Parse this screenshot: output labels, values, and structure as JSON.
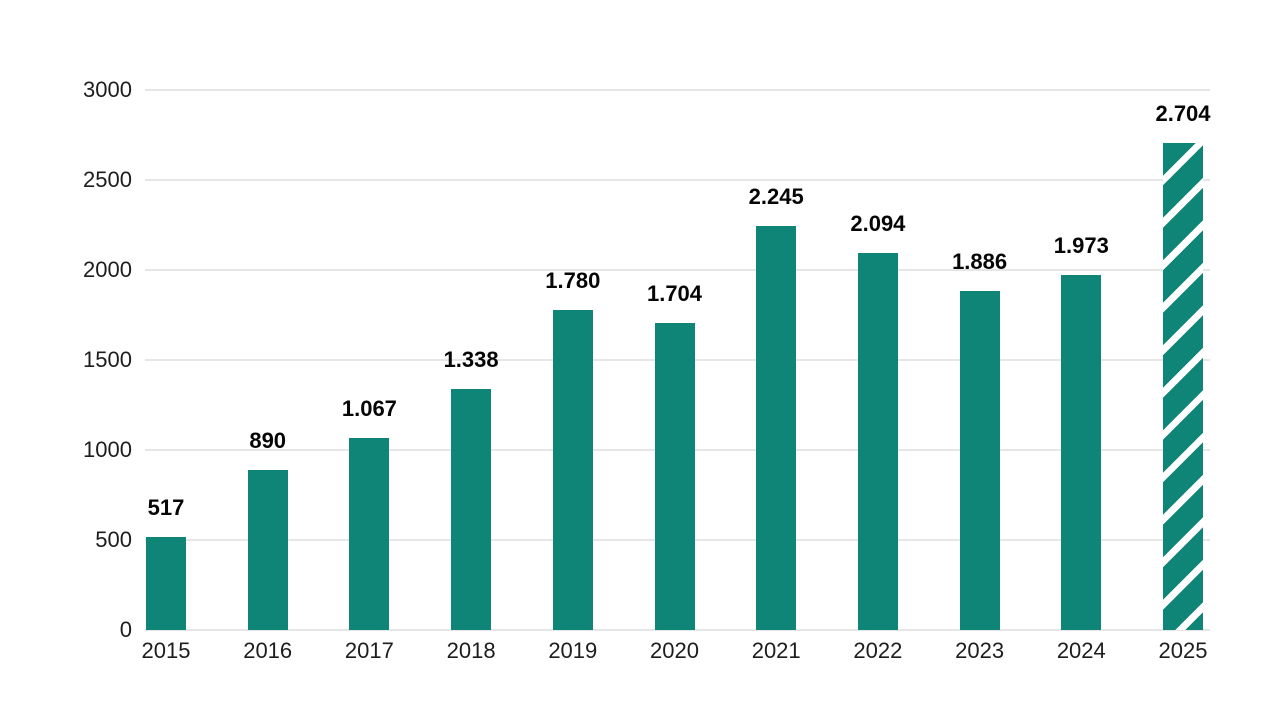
{
  "chart_data": {
    "type": "bar",
    "title": "",
    "xlabel": "",
    "ylabel": "",
    "categories": [
      "2015",
      "2016",
      "2017",
      "2018",
      "2019",
      "2020",
      "2021",
      "2022",
      "2023",
      "2024",
      "2025"
    ],
    "values": [
      517,
      890,
      1067,
      1338,
      1780,
      1704,
      2245,
      2094,
      1886,
      1973,
      2704
    ],
    "value_labels": [
      "517",
      "890",
      "1.067",
      "1.338",
      "1.780",
      "1.704",
      "2.245",
      "2.094",
      "1.886",
      "1.973",
      "2.704"
    ],
    "ylim": [
      0,
      3000
    ],
    "yticks": [
      0,
      500,
      1000,
      1500,
      2000,
      2500,
      3000
    ],
    "ytick_labels": [
      "0",
      "500",
      "1000",
      "1500",
      "2000",
      "2500",
      "3000"
    ],
    "grid": true,
    "legend_position": "none",
    "hatched_categories": [
      "2025"
    ],
    "colors": {
      "bar": "#0e8577",
      "hatch_stripe": "#ffffff",
      "gridline": "#e6e6e6",
      "tick_text": "#1d1d1d",
      "value_label_text": "#060606",
      "background": "#ffffff"
    }
  }
}
